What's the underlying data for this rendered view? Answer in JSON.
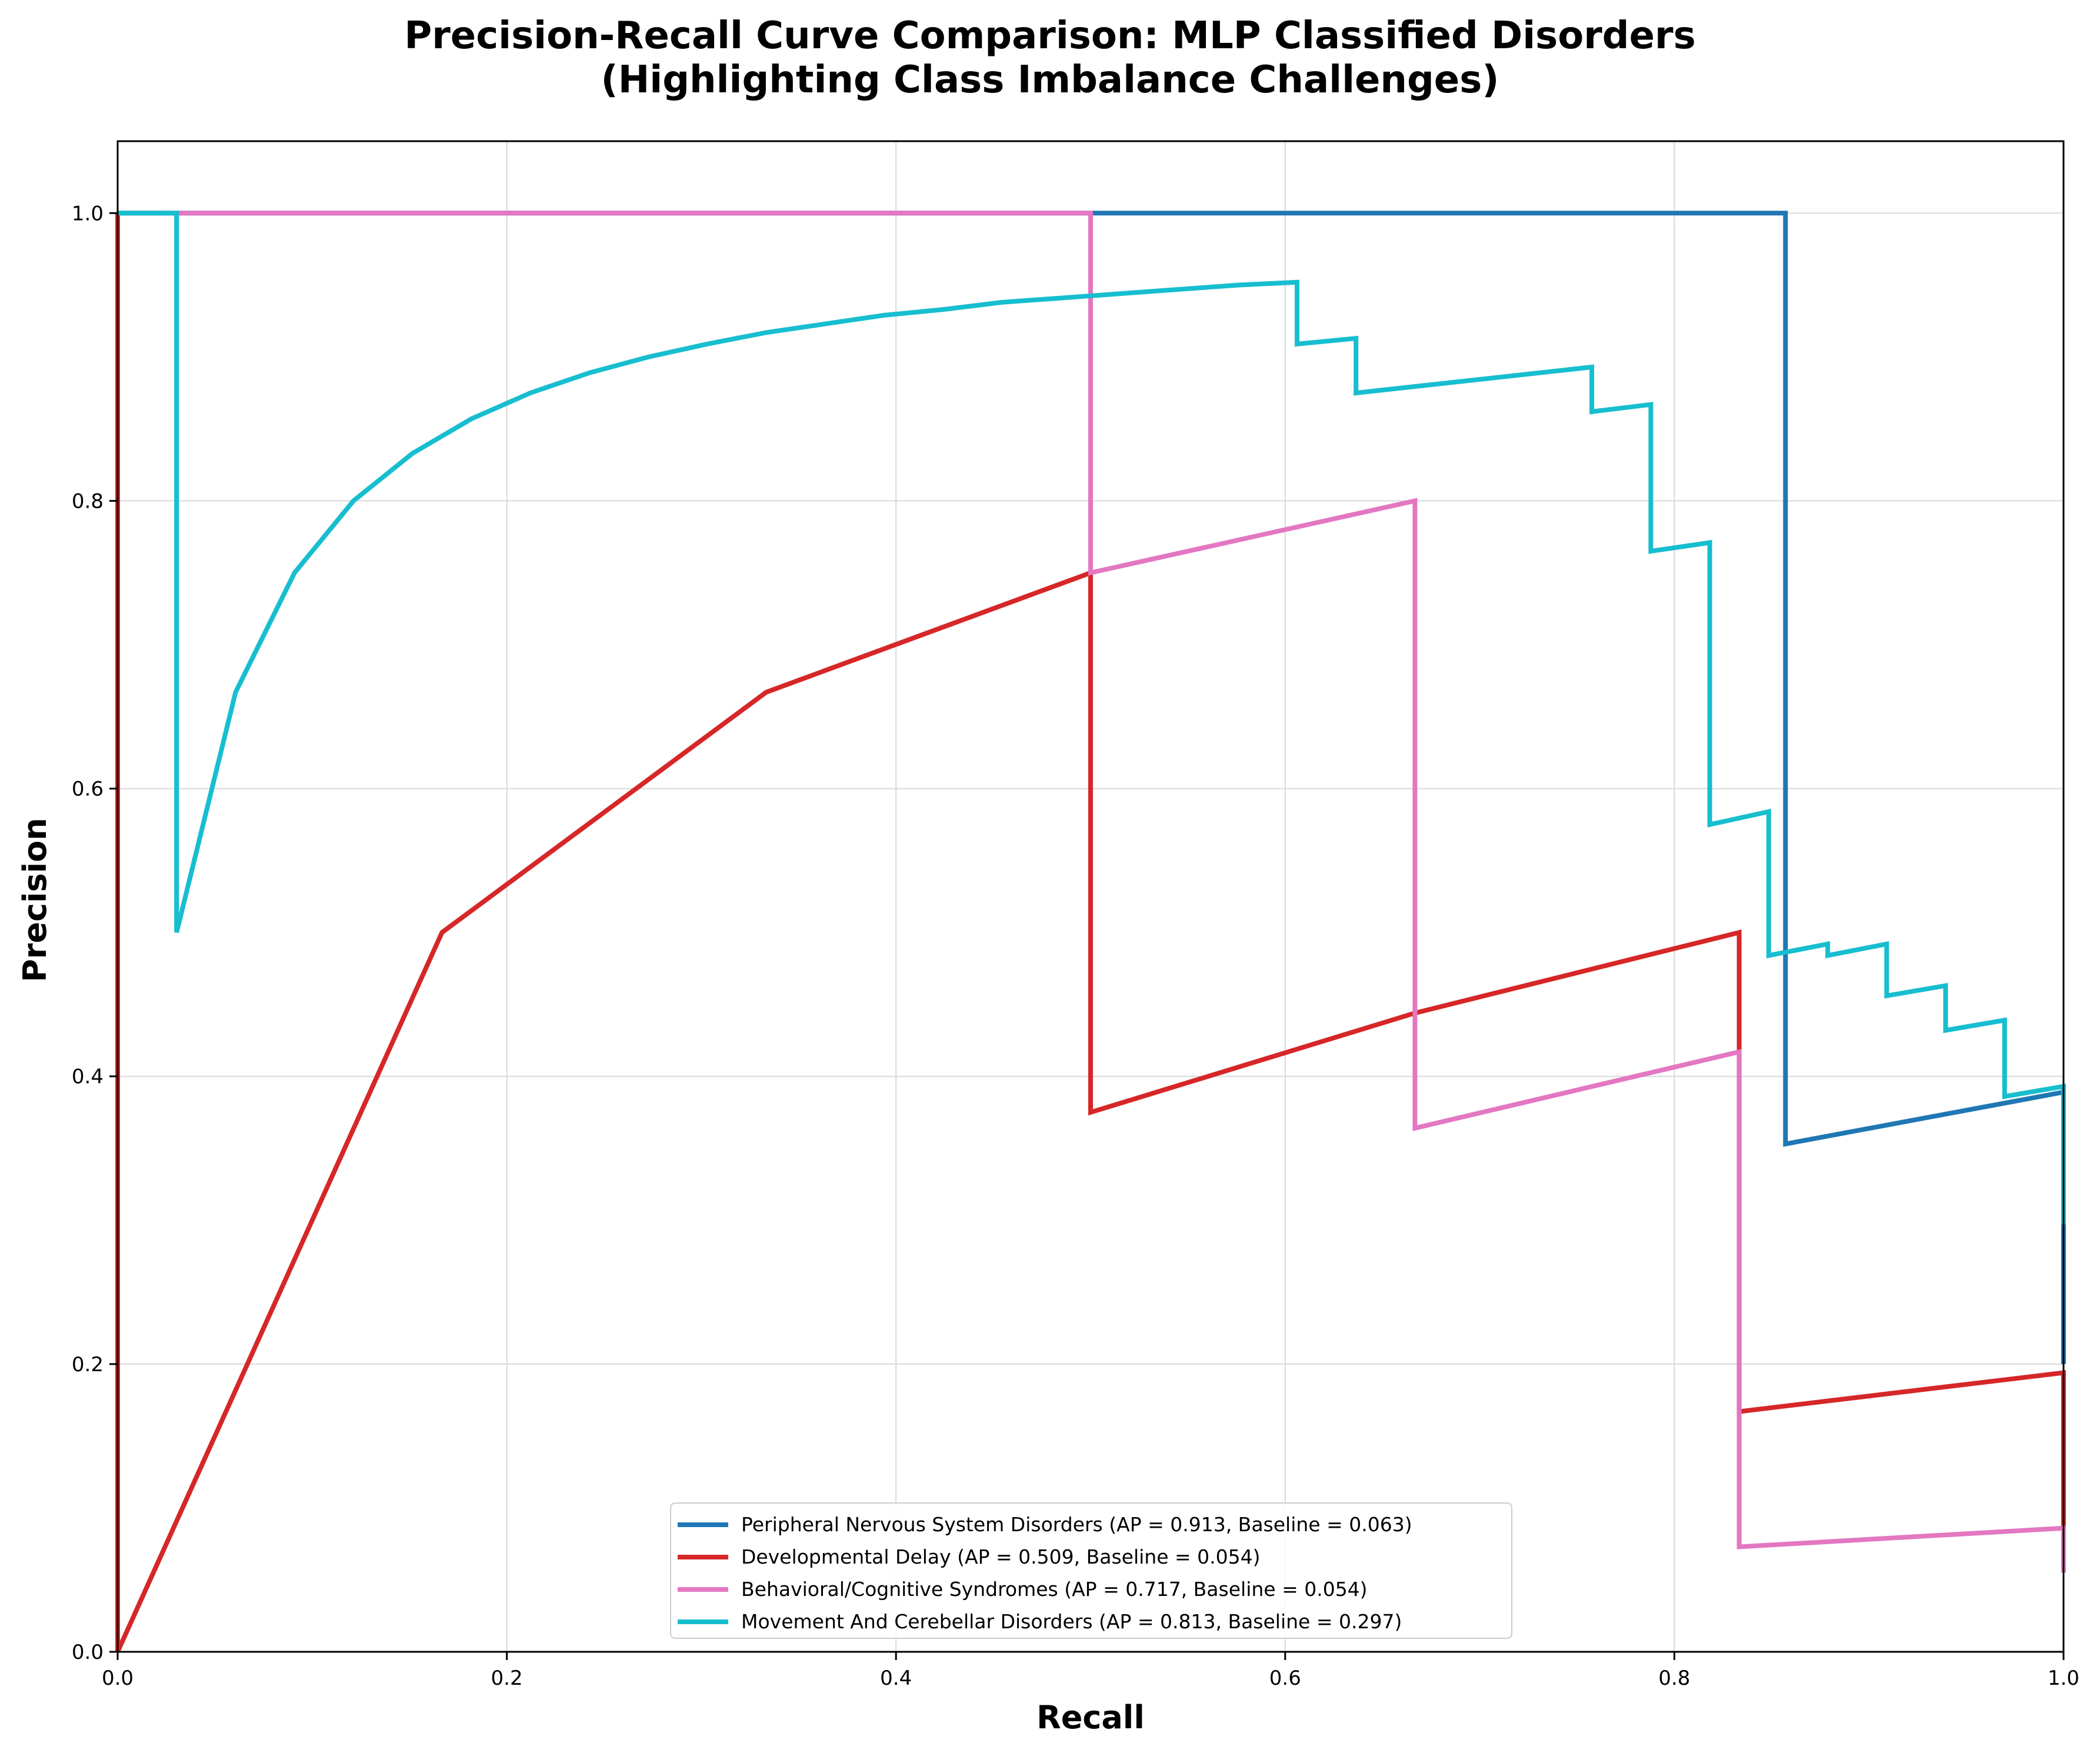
{
  "chart_data": {
    "type": "line",
    "title_line1": "Precision-Recall Curve Comparison: MLP Classified Disorders",
    "title_line2": "(Highlighting Class Imbalance Challenges)",
    "xlabel": "Recall",
    "ylabel": "Precision",
    "xlim": [
      0,
      1
    ],
    "ylim": [
      0,
      1.05
    ],
    "xticks": [
      0.0,
      0.2,
      0.4,
      0.6,
      0.8,
      1.0
    ],
    "yticks": [
      0.0,
      0.2,
      0.4,
      0.6,
      0.8,
      1.0
    ],
    "xtick_labels": [
      "0.0",
      "0.2",
      "0.4",
      "0.6",
      "0.8",
      "1.0"
    ],
    "ytick_labels": [
      "0.0",
      "0.2",
      "0.4",
      "0.6",
      "0.8",
      "1.0"
    ],
    "grid": true,
    "legend_position": "bottom-center",
    "series": [
      {
        "name": "Peripheral Nervous System Disorders (AP = 0.913, Baseline = 0.063)",
        "color": "#1f77b4",
        "points": [
          [
            0,
            1
          ],
          [
            0.0714,
            1
          ],
          [
            0.1429,
            1
          ],
          [
            0.2143,
            1
          ],
          [
            0.2857,
            1
          ],
          [
            0.3571,
            1
          ],
          [
            0.4286,
            1
          ],
          [
            0.5,
            1
          ],
          [
            0.5714,
            1
          ],
          [
            0.6429,
            1
          ],
          [
            0.7143,
            1
          ],
          [
            0.7857,
            1
          ],
          [
            0.8571,
            1
          ],
          [
            0.8571,
            0.353
          ],
          [
            0.9286,
            0.371
          ],
          [
            1,
            0.389
          ],
          [
            1,
            0.2
          ]
        ]
      },
      {
        "name": "Developmental Delay (AP = 0.509, Baseline = 0.054)",
        "color": "#d62728",
        "points": [
          [
            0,
            1
          ],
          [
            0,
            0
          ],
          [
            0.1667,
            0.5
          ],
          [
            0.3333,
            0.667
          ],
          [
            0.5,
            0.75
          ],
          [
            0.5,
            0.375
          ],
          [
            0.6667,
            0.444
          ],
          [
            0.8333,
            0.5
          ],
          [
            0.8333,
            0.167
          ],
          [
            1,
            0.194
          ],
          [
            1,
            0.055
          ]
        ]
      },
      {
        "name": "Behavioral/Cognitive Syndromes (AP = 0.717, Baseline = 0.054)",
        "color": "#e377c2",
        "points": [
          [
            0,
            1
          ],
          [
            0.1667,
            1
          ],
          [
            0.3333,
            1
          ],
          [
            0.5,
            1
          ],
          [
            0.5,
            0.75
          ],
          [
            0.6667,
            0.8
          ],
          [
            0.6667,
            0.364
          ],
          [
            0.8333,
            0.417
          ],
          [
            0.8333,
            0.073
          ],
          [
            1,
            0.086
          ],
          [
            1,
            0.055
          ]
        ]
      },
      {
        "name": "Movement And Cerebellar Disorders (AP = 0.813, Baseline = 0.297)",
        "color": "#17becf",
        "points": [
          [
            0,
            1
          ],
          [
            0.0303,
            1
          ],
          [
            0.0303,
            0.5
          ],
          [
            0.0606,
            0.667
          ],
          [
            0.0909,
            0.75
          ],
          [
            0.1212,
            0.8
          ],
          [
            0.1515,
            0.833
          ],
          [
            0.1818,
            0.857
          ],
          [
            0.2121,
            0.875
          ],
          [
            0.2424,
            0.889
          ],
          [
            0.2727,
            0.9
          ],
          [
            0.303,
            0.909
          ],
          [
            0.3333,
            0.917
          ],
          [
            0.3636,
            0.923
          ],
          [
            0.3939,
            0.929
          ],
          [
            0.4242,
            0.933
          ],
          [
            0.4545,
            0.938
          ],
          [
            0.4848,
            0.941
          ],
          [
            0.5152,
            0.944
          ],
          [
            0.5455,
            0.947
          ],
          [
            0.5758,
            0.95
          ],
          [
            0.6061,
            0.952
          ],
          [
            0.6061,
            0.909
          ],
          [
            0.6364,
            0.913
          ],
          [
            0.6364,
            0.875
          ],
          [
            0.7576,
            0.893
          ],
          [
            0.7576,
            0.862
          ],
          [
            0.7879,
            0.867
          ],
          [
            0.7879,
            0.765
          ],
          [
            0.8182,
            0.771
          ],
          [
            0.8182,
            0.575
          ],
          [
            0.8485,
            0.584
          ],
          [
            0.8485,
            0.484
          ],
          [
            0.8788,
            0.492
          ],
          [
            0.8788,
            0.484
          ],
          [
            0.9091,
            0.492
          ],
          [
            0.9091,
            0.456
          ],
          [
            0.9394,
            0.463
          ],
          [
            0.9394,
            0.432
          ],
          [
            0.9697,
            0.439
          ],
          [
            0.9697,
            0.386
          ],
          [
            1,
            0.393
          ],
          [
            1,
            0.297
          ]
        ]
      }
    ]
  }
}
